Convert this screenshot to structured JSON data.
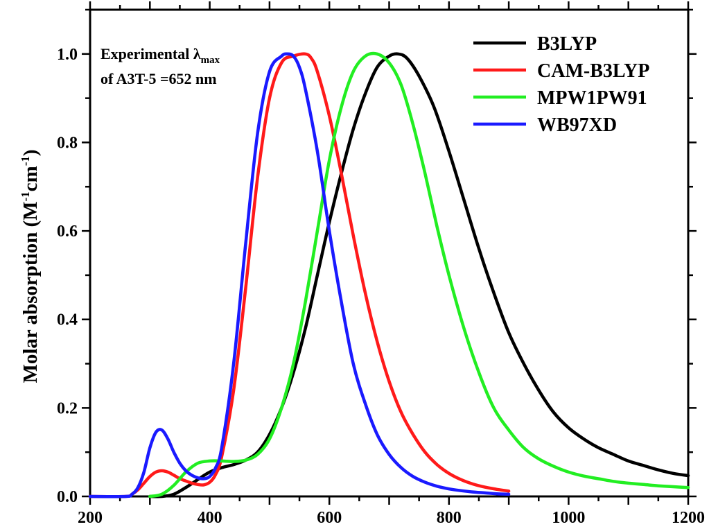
{
  "chart_data": {
    "type": "line",
    "title": "",
    "xlabel": "",
    "ylabel": "Molar absorption (M",
    "ylabel_sup1": "-1",
    "ylabel_mid": "cm",
    "ylabel_sup2": "-1",
    "ylabel_end": ")",
    "xlim": [
      200,
      1200
    ],
    "ylim": [
      0.0,
      1.1
    ],
    "x_ticks": [
      200,
      400,
      600,
      800,
      1000,
      1200
    ],
    "x_tick_labels": [
      "200",
      "400",
      "600",
      "800",
      "1000",
      "1200"
    ],
    "y_ticks": [
      0.0,
      0.2,
      0.4,
      0.6,
      0.8,
      1.0
    ],
    "y_tick_labels": [
      "0.0",
      "0.2",
      "0.4",
      "0.6",
      "0.8",
      "1.0"
    ],
    "grid": false,
    "legend_position": "top-right",
    "annotation": {
      "line1_prefix": "Experimental λ",
      "line1_sub": "max",
      "line2": "of A3T-5 =652 nm"
    },
    "series": [
      {
        "name": "B3LYP",
        "color": "#000000",
        "x": [
          300,
          320,
          340,
          360,
          380,
          400,
          420,
          440,
          460,
          480,
          500,
          520,
          540,
          560,
          580,
          600,
          620,
          640,
          660,
          680,
          700,
          715,
          730,
          750,
          775,
          800,
          825,
          850,
          875,
          900,
          925,
          950,
          975,
          1000,
          1025,
          1050,
          1075,
          1100,
          1125,
          1150,
          1175,
          1200
        ],
        "y": [
          0.0,
          0.0,
          0.005,
          0.02,
          0.038,
          0.055,
          0.065,
          0.072,
          0.082,
          0.1,
          0.14,
          0.2,
          0.28,
          0.38,
          0.5,
          0.62,
          0.73,
          0.83,
          0.91,
          0.97,
          0.995,
          1.0,
          0.99,
          0.95,
          0.88,
          0.78,
          0.67,
          0.56,
          0.46,
          0.37,
          0.3,
          0.24,
          0.19,
          0.155,
          0.13,
          0.11,
          0.095,
          0.08,
          0.07,
          0.06,
          0.052,
          0.047
        ]
      },
      {
        "name": "CAM-B3LYP",
        "color": "#ff1a1a",
        "x": [
          200,
          260,
          270,
          280,
          290,
          300,
          310,
          320,
          330,
          340,
          350,
          360,
          370,
          380,
          390,
          400,
          410,
          420,
          440,
          460,
          480,
          500,
          520,
          540,
          560,
          570,
          580,
          600,
          620,
          640,
          660,
          680,
          700,
          720,
          740,
          760,
          780,
          800,
          820,
          840,
          860,
          880,
          900
        ],
        "y": [
          0.0,
          0.0,
          0.005,
          0.015,
          0.03,
          0.045,
          0.055,
          0.058,
          0.055,
          0.048,
          0.04,
          0.035,
          0.03,
          0.027,
          0.026,
          0.032,
          0.05,
          0.09,
          0.24,
          0.47,
          0.72,
          0.9,
          0.98,
          0.995,
          1.0,
          0.99,
          0.96,
          0.86,
          0.73,
          0.59,
          0.46,
          0.35,
          0.26,
          0.19,
          0.14,
          0.1,
          0.072,
          0.052,
          0.038,
          0.028,
          0.021,
          0.016,
          0.012
        ]
      },
      {
        "name": "MPW1PW91",
        "color": "#22ee22",
        "x": [
          300,
          320,
          340,
          360,
          380,
          400,
          420,
          440,
          460,
          480,
          500,
          520,
          540,
          560,
          580,
          600,
          620,
          640,
          660,
          680,
          700,
          720,
          740,
          760,
          780,
          800,
          825,
          850,
          875,
          900,
          925,
          950,
          975,
          1000,
          1025,
          1050,
          1075,
          1100,
          1125,
          1150,
          1175,
          1200
        ],
        "y": [
          0.0,
          0.005,
          0.025,
          0.055,
          0.075,
          0.08,
          0.08,
          0.079,
          0.082,
          0.095,
          0.13,
          0.2,
          0.3,
          0.44,
          0.6,
          0.76,
          0.88,
          0.96,
          0.995,
          1.0,
          0.98,
          0.93,
          0.84,
          0.73,
          0.61,
          0.5,
          0.38,
          0.28,
          0.2,
          0.15,
          0.11,
          0.085,
          0.068,
          0.055,
          0.046,
          0.04,
          0.034,
          0.03,
          0.027,
          0.024,
          0.022,
          0.02
        ]
      },
      {
        "name": "WB97XD",
        "color": "#1a1aff",
        "x": [
          200,
          260,
          270,
          280,
          290,
          300,
          310,
          320,
          330,
          340,
          350,
          360,
          370,
          380,
          390,
          400,
          410,
          420,
          440,
          460,
          480,
          500,
          520,
          530,
          540,
          550,
          560,
          580,
          600,
          620,
          640,
          660,
          680,
          700,
          720,
          740,
          760,
          780,
          800,
          820,
          840,
          860,
          880,
          900
        ],
        "y": [
          0.0,
          0.0,
          0.005,
          0.02,
          0.055,
          0.11,
          0.145,
          0.15,
          0.13,
          0.1,
          0.075,
          0.058,
          0.048,
          0.042,
          0.04,
          0.045,
          0.065,
          0.11,
          0.3,
          0.57,
          0.82,
          0.96,
          0.995,
          1.0,
          0.995,
          0.97,
          0.92,
          0.78,
          0.6,
          0.44,
          0.3,
          0.21,
          0.14,
          0.095,
          0.065,
          0.045,
          0.032,
          0.023,
          0.017,
          0.013,
          0.01,
          0.008,
          0.006,
          0.005
        ]
      }
    ]
  }
}
